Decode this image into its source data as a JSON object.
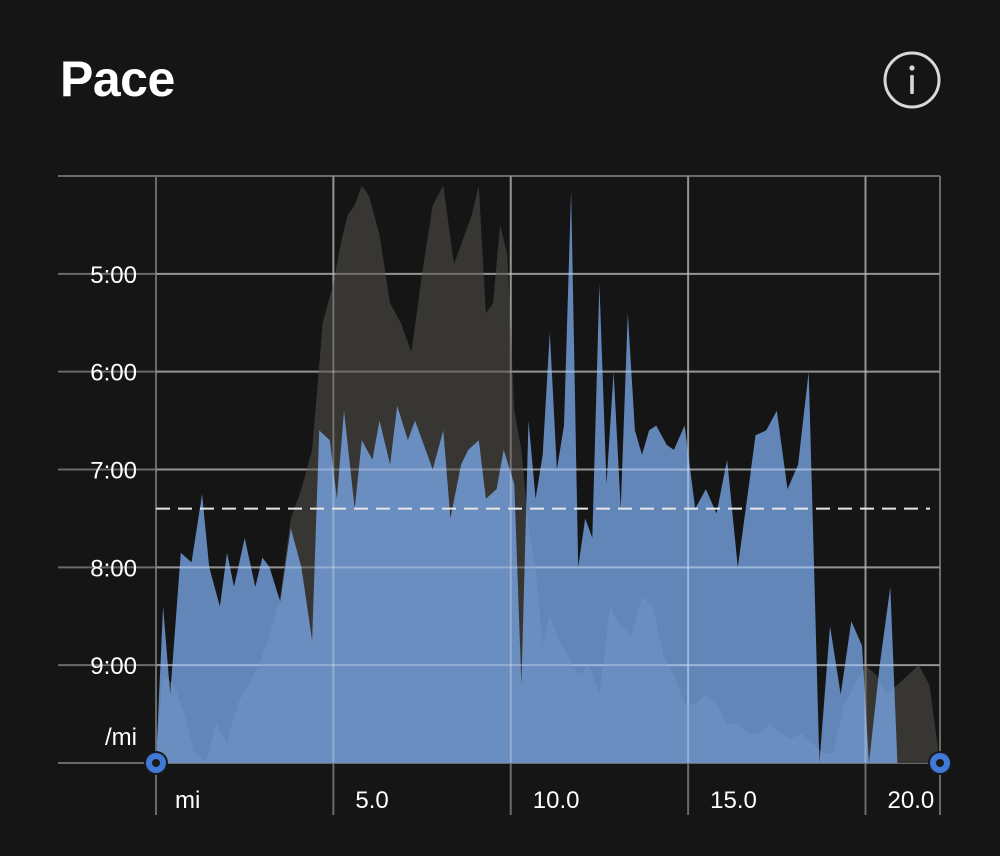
{
  "header": {
    "title": "Pace",
    "info_icon": "info-icon"
  },
  "colors": {
    "background": "#151515",
    "pace_fill": "#7aa6e8",
    "elevation_fill": "#3a3835",
    "grid": "#6a6a6a",
    "avg_line": "#e6e6e6",
    "endpoint": "#3f7ad8"
  },
  "chart_data": {
    "type": "area",
    "title": "Pace",
    "y_unit_label": "/mi",
    "x_unit_label": "mi",
    "y_ticks": [
      "5:00",
      "6:00",
      "7:00",
      "8:00",
      "9:00"
    ],
    "y_tick_values": [
      5,
      6,
      7,
      8,
      9
    ],
    "x_ticks": [
      "5.0",
      "10.0",
      "15.0",
      "20.0"
    ],
    "x_tick_values": [
      5,
      10,
      15,
      20
    ],
    "x_range": [
      0,
      22.1
    ],
    "y_range_min_per_mi": [
      4,
      10
    ],
    "y_inverted": true,
    "average_pace_min_per_mi": 7.4,
    "grid": true,
    "series": [
      {
        "kind": "pace",
        "unit": "min/mi",
        "x": [
          0.0,
          0.2,
          0.4,
          0.7,
          1.0,
          1.3,
          1.5,
          1.8,
          2.0,
          2.2,
          2.5,
          2.8,
          3.0,
          3.2,
          3.5,
          3.8,
          4.1,
          4.4,
          4.6,
          4.9,
          5.1,
          5.3,
          5.6,
          5.8,
          6.1,
          6.3,
          6.6,
          6.8,
          7.1,
          7.3,
          7.6,
          7.8,
          8.1,
          8.3,
          8.6,
          8.8,
          9.1,
          9.3,
          9.6,
          9.8,
          10.1,
          10.3,
          10.5,
          10.7,
          10.9,
          11.1,
          11.3,
          11.5,
          11.7,
          11.9,
          12.1,
          12.3,
          12.5,
          12.7,
          12.9,
          13.1,
          13.3,
          13.5,
          13.7,
          13.9,
          14.1,
          14.4,
          14.6,
          14.9,
          15.2,
          15.5,
          15.8,
          16.1,
          16.4,
          16.7,
          16.9,
          17.2,
          17.5,
          17.8,
          18.1,
          18.4,
          18.7,
          19.0,
          19.3,
          19.6,
          19.9,
          20.1,
          20.4,
          20.7,
          20.9,
          21.1,
          21.4,
          21.7,
          22.0,
          22.1
        ],
        "y": [
          10.0,
          8.4,
          9.3,
          7.85,
          7.95,
          7.25,
          8.0,
          8.4,
          7.85,
          8.2,
          7.7,
          8.2,
          7.9,
          8.0,
          8.35,
          7.6,
          8.0,
          8.75,
          6.6,
          6.7,
          7.3,
          6.4,
          7.4,
          6.7,
          6.9,
          6.5,
          6.95,
          6.35,
          6.7,
          6.5,
          6.8,
          7.0,
          6.6,
          7.5,
          6.95,
          6.8,
          6.7,
          7.3,
          7.2,
          6.8,
          7.15,
          9.2,
          6.5,
          7.3,
          6.85,
          5.6,
          7.0,
          6.55,
          4.15,
          8.0,
          7.5,
          7.7,
          5.1,
          7.15,
          6.0,
          7.4,
          5.4,
          6.6,
          6.85,
          6.6,
          6.55,
          6.75,
          6.8,
          6.55,
          7.4,
          7.2,
          7.45,
          6.9,
          8.0,
          7.2,
          6.65,
          6.6,
          6.4,
          7.2,
          6.95,
          6.0,
          10.0,
          8.6,
          9.3,
          8.55,
          8.8,
          10.0,
          9.0,
          8.2,
          10.0,
          10.0,
          10.0,
          10.0,
          10.0,
          10.0
        ]
      },
      {
        "kind": "elevation",
        "unit": "relative",
        "x": [
          0.0,
          0.2,
          0.5,
          0.8,
          1.1,
          1.4,
          1.7,
          2.0,
          2.3,
          2.6,
          2.9,
          3.2,
          3.5,
          3.8,
          4.1,
          4.4,
          4.7,
          5.0,
          5.2,
          5.4,
          5.6,
          5.8,
          6.0,
          6.3,
          6.6,
          6.9,
          7.2,
          7.5,
          7.8,
          8.1,
          8.4,
          8.7,
          8.9,
          9.1,
          9.3,
          9.5,
          9.7,
          9.9,
          10.1,
          10.3,
          10.5,
          10.7,
          10.9,
          11.1,
          11.3,
          11.6,
          11.9,
          12.2,
          12.5,
          12.8,
          13.1,
          13.4,
          13.7,
          14.0,
          14.3,
          14.6,
          14.9,
          15.2,
          15.5,
          15.8,
          16.1,
          16.4,
          16.7,
          17.0,
          17.3,
          17.6,
          17.9,
          18.2,
          18.5,
          18.8,
          19.1,
          19.4,
          19.7,
          20.0,
          20.3,
          20.6,
          20.9,
          21.2,
          21.5,
          21.8,
          22.1
        ],
        "y": [
          9.9,
          9.1,
          9.2,
          9.5,
          9.9,
          10.0,
          9.6,
          9.8,
          9.4,
          9.2,
          9.0,
          8.7,
          8.3,
          7.5,
          7.2,
          6.8,
          5.5,
          5.1,
          4.7,
          4.4,
          4.3,
          4.1,
          4.2,
          4.6,
          5.3,
          5.5,
          5.8,
          5.0,
          4.3,
          4.1,
          4.9,
          4.6,
          4.4,
          4.1,
          5.4,
          5.3,
          4.5,
          4.8,
          6.4,
          6.8,
          7.6,
          8.0,
          8.8,
          8.5,
          8.7,
          8.9,
          9.1,
          9.0,
          9.3,
          8.4,
          8.6,
          8.7,
          8.3,
          8.4,
          8.9,
          9.1,
          9.4,
          9.4,
          9.3,
          9.4,
          9.6,
          9.6,
          9.7,
          9.7,
          9.6,
          9.7,
          9.75,
          9.7,
          9.8,
          9.9,
          9.9,
          9.4,
          9.2,
          9.0,
          9.1,
          9.3,
          9.2,
          9.1,
          9.0,
          9.2,
          10.0
        ]
      }
    ]
  }
}
